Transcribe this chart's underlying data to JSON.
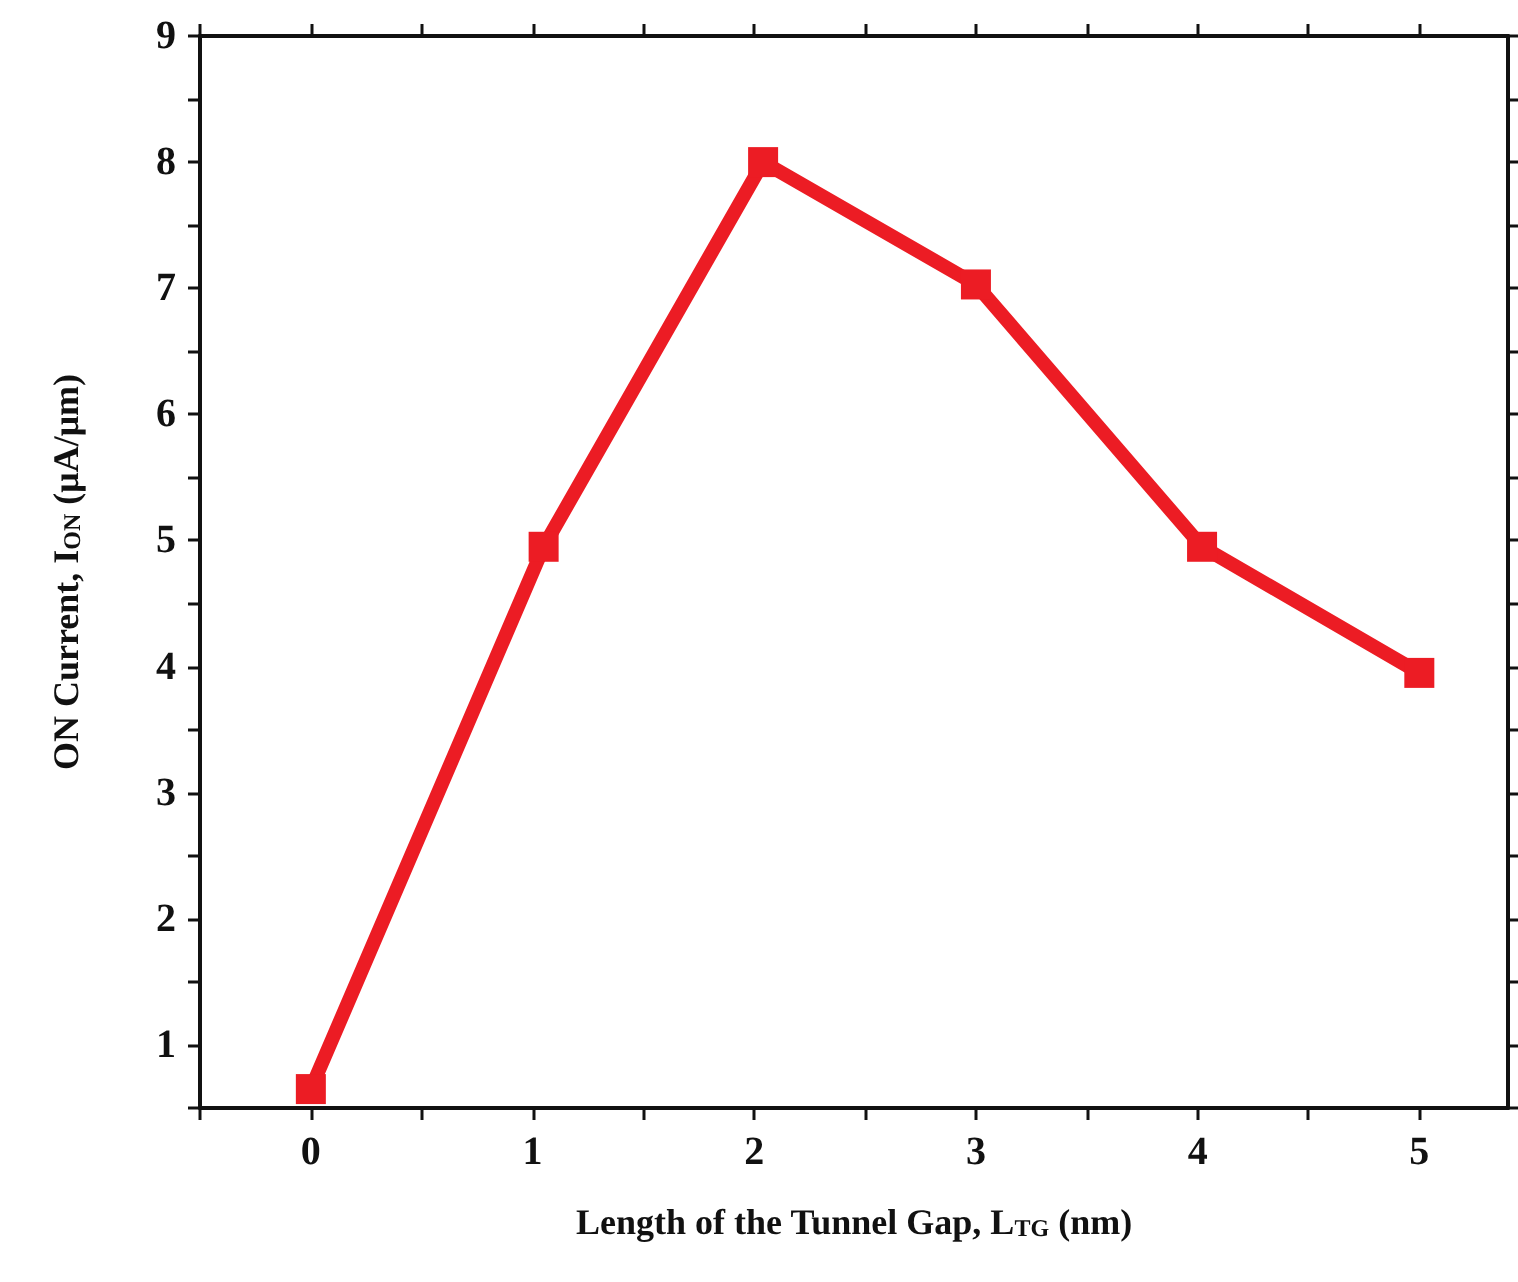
{
  "chart_data": {
    "type": "line",
    "xlabel": "Length of the Tunnel Gap, L$_{TG}$ (nm)",
    "ylabel": "ON Current, I$_{ON}$ (μA/μm)",
    "x": [
      0,
      1.05,
      2.04,
      3,
      4.02,
      5
    ],
    "series": [
      {
        "color": "#ec1c24",
        "values": [
          0.65,
          4.95,
          8.0,
          7.03,
          4.95,
          3.95
        ]
      }
    ],
    "marker": "square",
    "line_style": "solid",
    "grid": false,
    "xlim": [
      -0.5,
      5.4
    ],
    "xticks": [
      {
        "value": -0.5,
        "label": null
      },
      0,
      {
        "value": 0.5,
        "label": null
      },
      1,
      {
        "value": 1.5,
        "label": null
      },
      2,
      {
        "value": 2.5,
        "label": null
      },
      3,
      {
        "value": 3.5,
        "label": null
      },
      4,
      {
        "value": 4.5,
        "label": null
      },
      5
    ],
    "ylim": [
      0.5,
      9
    ],
    "yticks": [
      {
        "value": 0.5,
        "label": null
      },
      1,
      {
        "value": 1.5,
        "label": null
      },
      2,
      {
        "value": 2.5,
        "label": null
      },
      3,
      {
        "value": 3.5,
        "label": null
      },
      4,
      {
        "value": 4.5,
        "label": null
      },
      5,
      {
        "value": 5.5,
        "label": null
      },
      6,
      {
        "value": 6.5,
        "label": null
      },
      7,
      {
        "value": 7.5,
        "label": null
      },
      8,
      {
        "value": 8.5,
        "label": null
      },
      9
    ]
  }
}
